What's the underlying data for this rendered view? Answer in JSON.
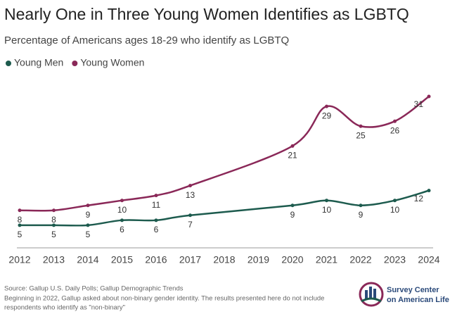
{
  "chart_data": {
    "type": "line",
    "title": "Nearly One in Three Young Women Identifies as LGBTQ",
    "subtitle": "Percentage of Americans ages 18-29 who identify as LGBTQ",
    "xlim": [
      2012,
      2024
    ],
    "xticks": [
      2012,
      2013,
      2014,
      2015,
      2016,
      2017,
      2018,
      2019,
      2020,
      2021,
      2022,
      2023,
      2024
    ],
    "ylim": [
      0,
      32
    ],
    "series": [
      {
        "name": "Young Men",
        "color": "#1d5b4e",
        "x": [
          2012,
          2013,
          2014,
          2015,
          2016,
          2017,
          2020,
          2021,
          2022,
          2023,
          2024
        ],
        "values": [
          5,
          5,
          5,
          6,
          6,
          7,
          9,
          10,
          9,
          10,
          12
        ]
      },
      {
        "name": "Young Women",
        "color": "#8a2858",
        "x": [
          2012,
          2013,
          2014,
          2015,
          2016,
          2017,
          2020,
          2021,
          2022,
          2023,
          2024
        ],
        "values": [
          8,
          8,
          9,
          10,
          11,
          13,
          21,
          29,
          25,
          26,
          31
        ]
      }
    ],
    "source": "Source: Gallup U.S. Daily Polls; Gallup Demographic Trends",
    "notes": [
      "Beginning in 2022, Gallup asked about non-binary gender identity. The results presented here do not include",
      "respondents who identify as \"non-binary\""
    ],
    "logo": [
      "Survey Center",
      "on American Life"
    ]
  }
}
